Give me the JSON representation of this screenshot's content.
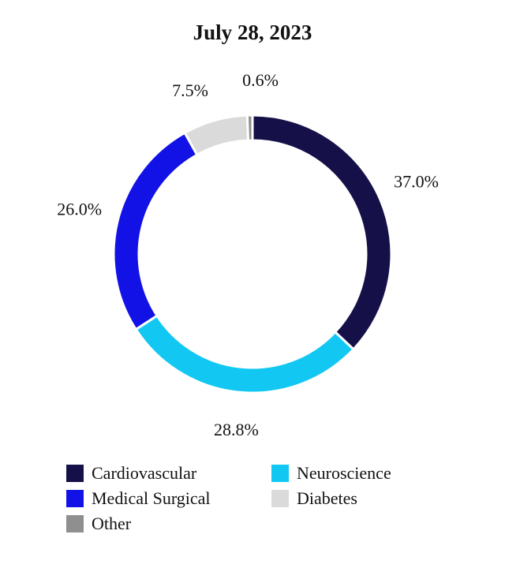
{
  "chart_data": {
    "type": "pie",
    "title": "July 28, 2023",
    "donut": true,
    "categories": [
      "Cardiovascular",
      "Neuroscience",
      "Medical Surgical",
      "Diabetes",
      "Other"
    ],
    "values": [
      37.0,
      28.8,
      26.0,
      7.5,
      0.6
    ],
    "labels": [
      "37.0%",
      "28.8%",
      "26.0%",
      "7.5%",
      "0.6%"
    ],
    "colors": [
      "#161048",
      "#12c8f2",
      "#1212e6",
      "#dadada",
      "#8f8f8f"
    ],
    "legend_position": "bottom"
  }
}
